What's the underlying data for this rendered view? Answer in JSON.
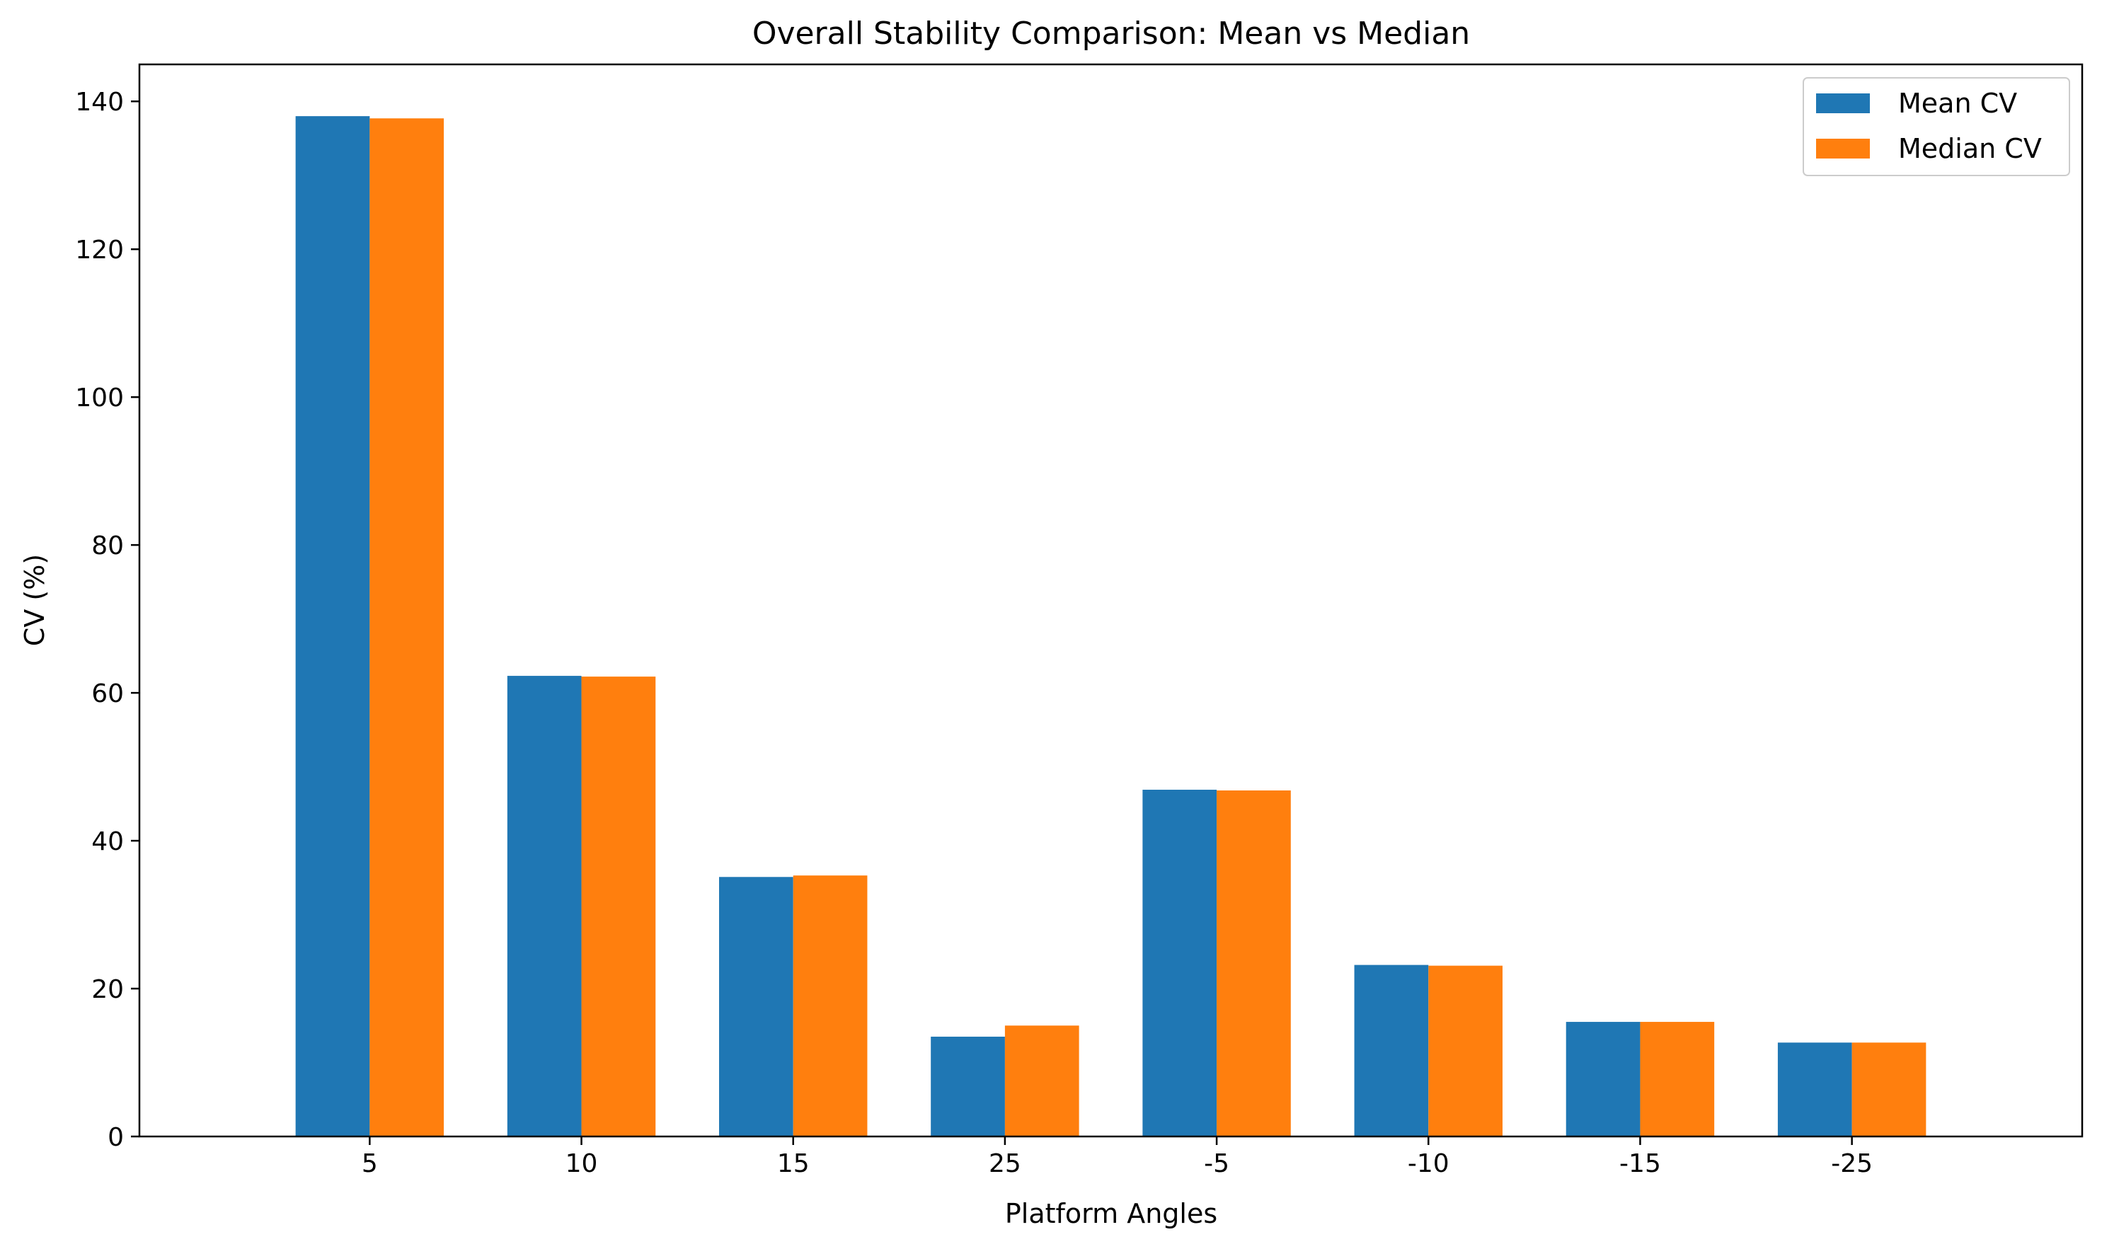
{
  "chart_data": {
    "type": "bar",
    "title": "Overall Stability Comparison: Mean vs Median",
    "xlabel": "Platform Angles",
    "ylabel": "CV (%)",
    "categories": [
      "5",
      "10",
      "15",
      "25",
      "-5",
      "-10",
      "-15",
      "-25"
    ],
    "series": [
      {
        "name": "Mean CV",
        "color": "#1f77b4",
        "values": [
          138.0,
          62.3,
          35.1,
          13.5,
          46.9,
          23.2,
          15.5,
          12.7
        ]
      },
      {
        "name": "Median CV",
        "color": "#ff7f0e",
        "values": [
          137.7,
          62.2,
          35.3,
          15.0,
          46.8,
          23.1,
          15.5,
          12.7
        ]
      }
    ],
    "ylim": [
      0,
      145
    ],
    "yticks": [
      "0",
      "20",
      "40",
      "60",
      "80",
      "100",
      "120",
      "140"
    ],
    "grid": false,
    "legend_position": "top-right"
  }
}
